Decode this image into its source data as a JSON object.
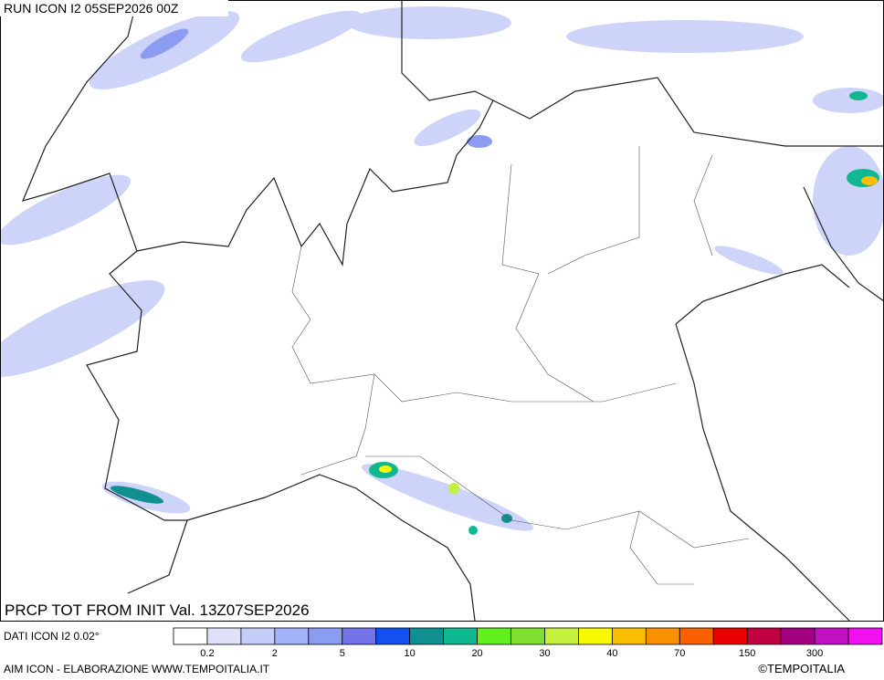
{
  "header": {
    "run": "RUN ICON I2 05SEP2026 00Z"
  },
  "map": {
    "caption": "PRCP TOT FROM INIT Val. 13Z07SEP2026"
  },
  "legend": {
    "source": "DATI ICON I2 0.02°",
    "colors": [
      "#ffffff",
      "#e0e0f8",
      "#c4ccf8",
      "#a4b4f8",
      "#8c9cf0",
      "#7474e8",
      "#1450f0",
      "#109090",
      "#10b890",
      "#60f020",
      "#80e030",
      "#c4f040",
      "#f8f800",
      "#f8c000",
      "#f89000",
      "#f86000",
      "#e80000",
      "#c00040",
      "#a00080",
      "#c010c0",
      "#f010f0"
    ],
    "labels": [
      "0.2",
      "2",
      "5",
      "10",
      "20",
      "30",
      "40",
      "70",
      "150",
      "300"
    ]
  },
  "footer": {
    "left": "AIM ICON - ELABORAZIONE WWW.TEMPOITALIA.IT",
    "right": "©TEMPOITALIA"
  }
}
